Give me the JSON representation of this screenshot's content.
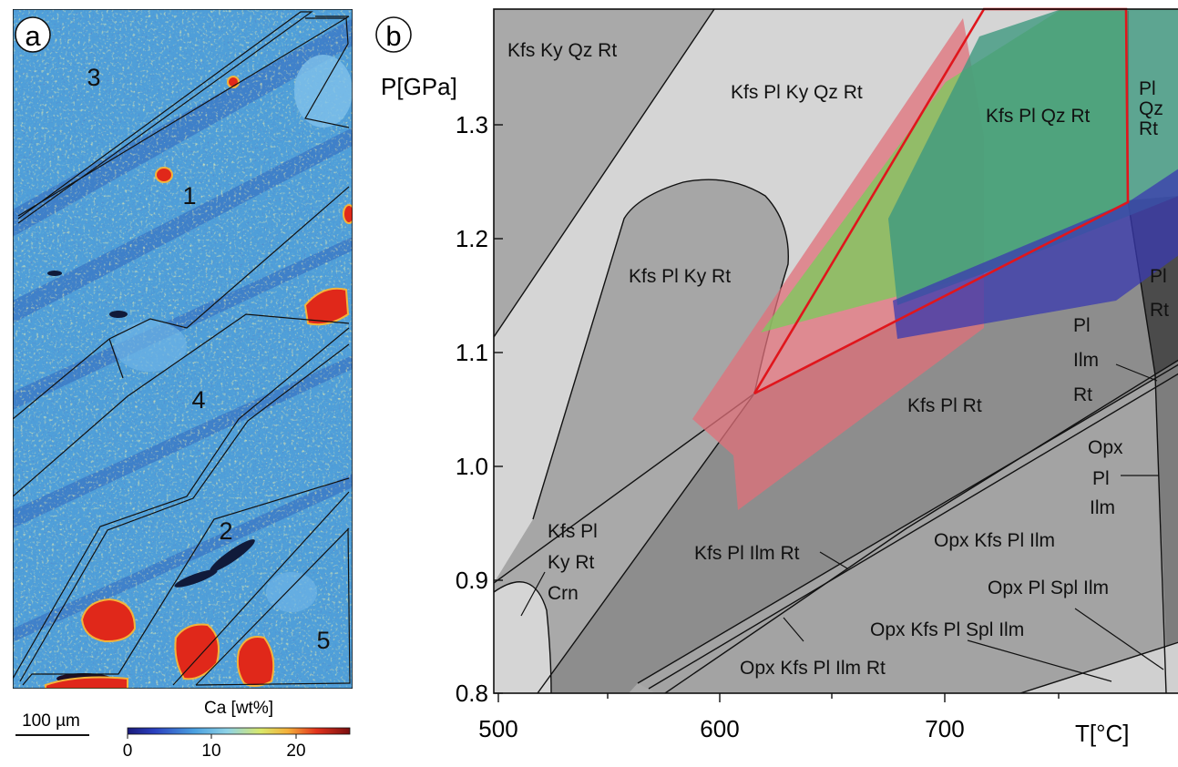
{
  "panel_a": {
    "panel_label": "a",
    "zone_labels": [
      "1",
      "2",
      "3",
      "4",
      "5"
    ],
    "scale_bar_label": "100 µm",
    "colorbar_title": "Ca [wt%]",
    "colorbar_ticks": [
      "0",
      "10",
      "20"
    ],
    "colors": {
      "background": "#4f9fd9",
      "blue_band": "#3b79c6",
      "deep_blue": "#2543a0",
      "red_grain": "#e0281a",
      "yellow": "#e8e36a"
    }
  },
  "panel_b": {
    "panel_label": "b",
    "y_axis_label": "P[GPa]",
    "x_axis_label": "T[°C]",
    "field_labels": [
      {
        "lines": [
          "Kfs Ky Qz Rt"
        ]
      },
      {
        "lines": [
          "Kfs Pl Ky Qz Rt"
        ]
      },
      {
        "lines": [
          "Kfs Pl Qz Rt"
        ]
      },
      {
        "lines": [
          "Pl",
          "Qz",
          "Rt"
        ]
      },
      {
        "lines": [
          "Kfs Pl Ky Rt"
        ]
      },
      {
        "lines": [
          "Pl",
          "Rt"
        ]
      },
      {
        "lines": [
          "Pl",
          "Ilm",
          "Rt"
        ]
      },
      {
        "lines": [
          "Kfs Pl Rt"
        ]
      },
      {
        "lines": [
          "Opx",
          "Pl",
          "Ilm"
        ]
      },
      {
        "lines": [
          "Kfs Pl",
          "Ky Rt",
          "Crn"
        ]
      },
      {
        "lines": [
          "Kfs Pl Ilm Rt"
        ]
      },
      {
        "lines": [
          "Opx Kfs Pl Ilm"
        ]
      },
      {
        "lines": [
          "Opx Pl Spl Ilm"
        ]
      },
      {
        "lines": [
          "Opx Kfs Pl Spl Ilm"
        ]
      },
      {
        "lines": [
          "Opx Kfs Pl Ilm Rt"
        ]
      }
    ],
    "colors": {
      "field_light": "#d5d5d5",
      "field_mid": "#a9a9a9",
      "field_dark": "#8d8d8d",
      "field_darker": "#7a7a7a",
      "field_darkest": "#4b4b4b",
      "overlay_red": "#e0707a",
      "overlay_green": "#7ec85e",
      "overlay_teal": "#3f9880",
      "overlay_blue": "#3a3ab0",
      "outline_red": "#e0161c"
    }
  },
  "chart_data": {
    "type": "phase_diagram",
    "x_axis": {
      "label": "T[°C]",
      "range": [
        493,
        795
      ],
      "ticks": [
        500,
        600,
        700
      ],
      "tick_labels": [
        "500",
        "600",
        "700"
      ]
    },
    "y_axis": {
      "label": "P[GPa]",
      "range": [
        0.8,
        1.4
      ],
      "ticks": [
        0.8,
        0.9,
        1.0,
        1.1,
        1.2,
        1.3
      ],
      "tick_labels": [
        "0.8",
        "0.9",
        "1.0",
        "1.1",
        "1.2",
        "1.3"
      ]
    },
    "highlighted_pt_field_outline": [
      [
        616,
        1.062
      ],
      [
        719,
        1.4
      ],
      [
        785,
        1.4
      ],
      [
        786,
        1.23
      ],
      [
        616,
        1.062
      ]
    ]
  }
}
